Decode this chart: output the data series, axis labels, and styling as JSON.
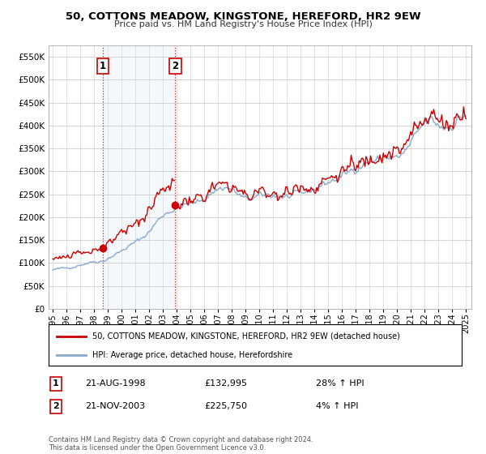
{
  "title": "50, COTTONS MEADOW, KINGSTONE, HEREFORD, HR2 9EW",
  "subtitle": "Price paid vs. HM Land Registry's House Price Index (HPI)",
  "ylim": [
    0,
    575000
  ],
  "yticks": [
    0,
    50000,
    100000,
    150000,
    200000,
    250000,
    300000,
    350000,
    400000,
    450000,
    500000,
    550000
  ],
  "ytick_labels": [
    "£0",
    "£50K",
    "£100K",
    "£150K",
    "£200K",
    "£250K",
    "£300K",
    "£350K",
    "£400K",
    "£450K",
    "£500K",
    "£550K"
  ],
  "sale1_year": 1998.64,
  "sale1_price": 132995,
  "sale2_year": 2003.89,
  "sale2_price": 225750,
  "legend_label_red": "50, COTTONS MEADOW, KINGSTONE, HEREFORD, HR2 9EW (detached house)",
  "legend_label_blue": "HPI: Average price, detached house, Herefordshire",
  "note1_label": "1",
  "note1_date": "21-AUG-1998",
  "note1_price": "£132,995",
  "note1_hpi": "28% ↑ HPI",
  "note2_label": "2",
  "note2_date": "21-NOV-2003",
  "note2_price": "£225,750",
  "note2_hpi": "4% ↑ HPI",
  "footer": "Contains HM Land Registry data © Crown copyright and database right 2024.\nThis data is licensed under the Open Government Licence v3.0.",
  "red_color": "#cc0000",
  "blue_color": "#88aacc",
  "fill_color": "#ccdded",
  "bg_color": "#ffffff",
  "grid_color": "#cccccc"
}
